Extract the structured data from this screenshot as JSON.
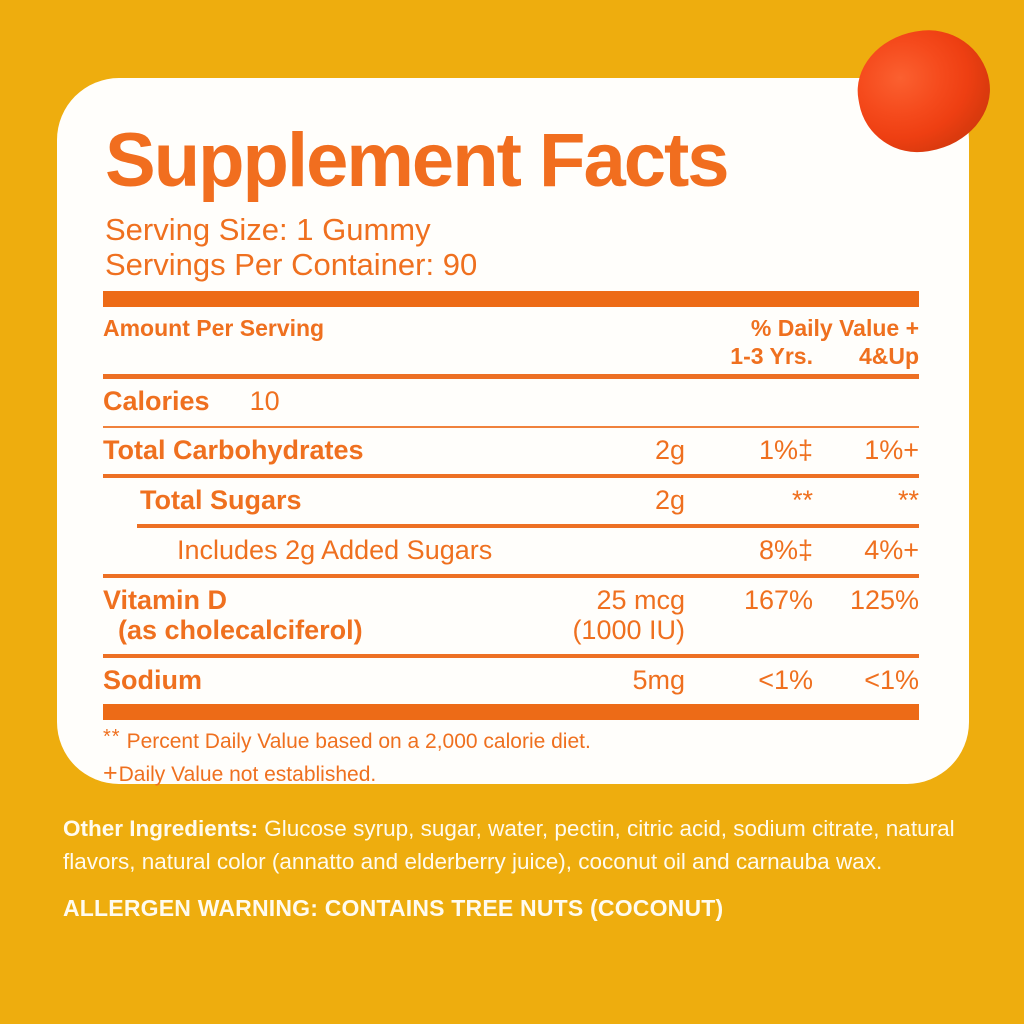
{
  "colors": {
    "background_gold": "#EEAD0E",
    "accent_orange": "#EE6D1E",
    "card_white": "#FFFEFB",
    "gummy_red": "#EF3F12",
    "bottom_text": "#FFFBEF"
  },
  "label": {
    "title": "Supplement Facts",
    "serving_size": "Serving Size: 1 Gummy",
    "servings_per_container": "Servings Per Container: 90",
    "header": {
      "amount_col": "Amount Per Serving",
      "dv_title": "% Daily Value +",
      "dv_col1": "1-3 Yrs.",
      "dv_col2": "4&Up"
    },
    "calories": {
      "label": "Calories",
      "value": "10"
    },
    "rows": [
      {
        "label": "Total Carbohydrates",
        "amount": "2g",
        "dv1": "1%‡",
        "dv2": "1%+"
      },
      {
        "label": "Total Sugars",
        "amount": "2g",
        "dv1": "**",
        "dv2": "**"
      },
      {
        "label": "Includes 2g Added Sugars",
        "amount": "",
        "dv1": "8%‡",
        "dv2": "4%+"
      },
      {
        "label": "Vitamin D",
        "label2": "(as cholecalciferol)",
        "amount": "25 mcg",
        "amount2": "(1000 IU)",
        "dv1": "167%",
        "dv2": "125%"
      },
      {
        "label": "Sodium",
        "amount": "5mg",
        "dv1": "<1%",
        "dv2": "<1%"
      }
    ],
    "footnotes": [
      {
        "symbol": "**",
        "text": "Percent Daily Value based on a 2,000 calorie diet."
      },
      {
        "symbol": "+",
        "text": "Daily Value not established."
      }
    ]
  },
  "bottom": {
    "other_ingredients_label": "Other Ingredients:",
    "other_ingredients_text": " Glucose syrup, sugar, water, pectin, citric acid, sodium citrate, natural flavors, natural color (annatto and elderberry juice), coconut oil and carnauba wax.",
    "allergen_warning": "ALLERGEN WARNING: CONTAINS TREE NUTS (COCONUT)"
  }
}
